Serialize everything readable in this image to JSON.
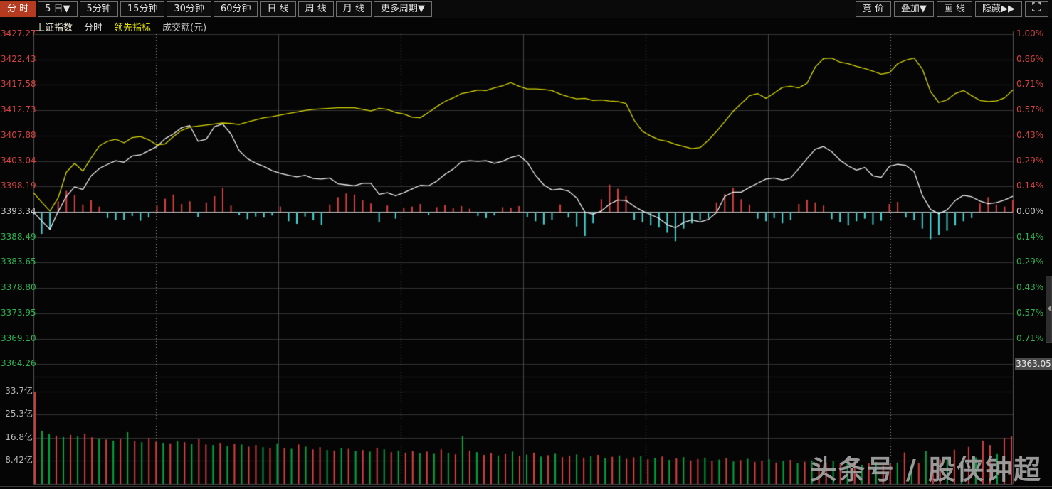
{
  "toolbar": {
    "tabs": [
      {
        "label": "分 时"
      },
      {
        "label": "5 日▼"
      },
      {
        "label": "5分钟"
      },
      {
        "label": "15分钟"
      },
      {
        "label": "30分钟"
      },
      {
        "label": "60分钟"
      },
      {
        "label": "日 线"
      },
      {
        "label": "周 线"
      },
      {
        "label": "月 线"
      },
      {
        "label": "更多周期▼"
      }
    ],
    "buttons": [
      {
        "label": "竞 价"
      },
      {
        "label": "叠加▼"
      },
      {
        "label": "画 线"
      },
      {
        "label": "隐藏▶▶"
      }
    ]
  },
  "legend": {
    "index_name": "上证指数",
    "chart_type": "分时",
    "indicator": "领先指标",
    "turnover": "成交额(元)"
  },
  "watermark": "头条号 / 股侠钟超",
  "chart_data": {
    "type": "line",
    "title": "上证指数 5日分时图 领先指标 成交额",
    "prev_close": 3393.34,
    "last_value_badge": "3363.05",
    "left_axis_prices": [
      "3427.27",
      "3422.43",
      "3417.58",
      "3412.73",
      "3407.88",
      "3403.04",
      "3398.19",
      "3393.34",
      "3388.49",
      "3383.65",
      "3378.80",
      "3373.95",
      "3369.10",
      "3364.26"
    ],
    "right_axis_percents": [
      "1.00%",
      "0.86%",
      "0.71%",
      "0.57%",
      "0.43%",
      "0.29%",
      "0.14%",
      "0.00%",
      "0.14%",
      "0.29%",
      "0.43%",
      "0.57%",
      "0.71%"
    ],
    "volume_axis_labels": [
      "33.7亿",
      "25.3亿",
      "16.8亿",
      "8.42亿"
    ],
    "volume_grid_values": [
      33.7,
      25.3,
      16.8,
      8.42
    ],
    "legend_position": "top-left",
    "grid": "on",
    "series": [
      {
        "name": "price_white_line",
        "color": "#f0f0f0",
        "values": [
          3393.3,
          3391.6,
          3390.0,
          3393.4,
          3396.3,
          3398.1,
          3397.6,
          3400.2,
          3401.6,
          3402.4,
          3403.1,
          3402.8,
          3404.0,
          3404.2,
          3405.0,
          3405.8,
          3407.3,
          3408.2,
          3409.4,
          3409.8,
          3406.8,
          3407.2,
          3409.6,
          3410.1,
          3408.2,
          3405.0,
          3403.5,
          3402.6,
          3402.0,
          3401.2,
          3400.7,
          3400.3,
          3400.0,
          3400.3,
          3399.7,
          3399.6,
          3399.8,
          3398.7,
          3398.5,
          3398.3,
          3398.8,
          3398.8,
          3396.7,
          3397.0,
          3396.4,
          3397.0,
          3397.7,
          3398.4,
          3398.3,
          3399.2,
          3400.5,
          3401.5,
          3402.9,
          3403.1,
          3403.0,
          3403.1,
          3402.6,
          3403.0,
          3403.7,
          3404.1,
          3402.8,
          3400.3,
          3398.5,
          3397.5,
          3397.7,
          3397.3,
          3396.0,
          3393.3,
          3392.9,
          3393.5,
          3394.8,
          3395.6,
          3395.5,
          3394.4,
          3393.5,
          3392.8,
          3392.1,
          3390.9,
          3390.3,
          3391.3,
          3391.8,
          3391.4,
          3391.9,
          3393.2,
          3396.3,
          3397.1,
          3397.1,
          3398.0,
          3398.8,
          3399.6,
          3399.8,
          3399.4,
          3399.8,
          3401.6,
          3403.5,
          3405.3,
          3405.8,
          3404.8,
          3403.2,
          3402.1,
          3401.3,
          3401.8,
          3400.2,
          3399.9,
          3402.0,
          3402.4,
          3402.2,
          3401.0,
          3396.5,
          3393.8,
          3393.0,
          3393.7,
          3395.5,
          3396.5,
          3396.2,
          3395.4,
          3394.9,
          3395.1,
          3395.6,
          3396.3
        ]
      },
      {
        "name": "leading_indicator_yellow_line",
        "color": "#d8d800",
        "values": [
          3397.0,
          3395.2,
          3393.5,
          3396.0,
          3400.9,
          3402.6,
          3401.1,
          3403.6,
          3405.9,
          3406.8,
          3407.2,
          3406.5,
          3407.5,
          3407.7,
          3407.1,
          3406.1,
          3406.3,
          3407.7,
          3408.9,
          3409.5,
          3409.7,
          3409.9,
          3410.1,
          3410.3,
          3410.2,
          3410.0,
          3410.5,
          3410.9,
          3411.3,
          3411.5,
          3411.8,
          3412.1,
          3412.4,
          3412.7,
          3412.9,
          3413.0,
          3413.1,
          3413.2,
          3413.2,
          3413.2,
          3412.9,
          3412.6,
          3413.1,
          3412.9,
          3412.3,
          3412.0,
          3411.4,
          3411.3,
          3412.3,
          3413.4,
          3414.4,
          3415.1,
          3415.9,
          3416.2,
          3416.6,
          3416.5,
          3417.0,
          3417.4,
          3418.0,
          3417.3,
          3416.8,
          3416.8,
          3416.7,
          3416.5,
          3415.8,
          3415.3,
          3414.9,
          3415.0,
          3414.6,
          3414.7,
          3414.5,
          3414.4,
          3414.0,
          3410.8,
          3408.7,
          3407.8,
          3407.1,
          3406.8,
          3406.2,
          3405.8,
          3405.4,
          3405.6,
          3407.0,
          3408.7,
          3410.6,
          3412.5,
          3414.0,
          3415.5,
          3415.9,
          3415.0,
          3416.0,
          3417.1,
          3417.3,
          3417.0,
          3417.9,
          3421.0,
          3422.6,
          3422.7,
          3421.9,
          3421.6,
          3421.1,
          3420.7,
          3420.2,
          3419.6,
          3419.9,
          3421.6,
          3422.3,
          3422.7,
          3420.6,
          3416.3,
          3414.2,
          3414.7,
          3415.9,
          3416.5,
          3415.5,
          3414.6,
          3414.4,
          3414.5,
          3415.1,
          3416.6
        ]
      }
    ],
    "histogram": {
      "name": "momentum_bars",
      "up_color": "#d94040",
      "down_color": "#45d8d8",
      "values": [
        -0.5,
        -4.2,
        -3.4,
        2.0,
        4.0,
        3.2,
        1.4,
        2.2,
        1.0,
        -1.2,
        -1.6,
        -1.5,
        -0.8,
        -1.7,
        -1.1,
        1.2,
        2.5,
        3.3,
        1.5,
        2.0,
        -1.0,
        1.8,
        3.0,
        4.6,
        1.2,
        -0.6,
        -1.4,
        -0.9,
        -1.1,
        -0.7,
        1.0,
        -1.8,
        -2.3,
        -0.9,
        -1.6,
        -2.5,
        1.4,
        2.8,
        3.5,
        3.3,
        2.2,
        1.6,
        -2.0,
        1.2,
        -1.3,
        0.8,
        1.0,
        1.5,
        -0.6,
        0.9,
        1.3,
        0.7,
        1.1,
        0.6,
        -0.8,
        -1.2,
        -0.7,
        0.9,
        0.8,
        1.1,
        -1.0,
        -1.8,
        -2.4,
        -1.5,
        1.4,
        -1.1,
        -2.8,
        -4.6,
        -2.2,
        2.4,
        5.2,
        4.4,
        3.0,
        -1.5,
        -2.0,
        -2.6,
        -3.0,
        -4.0,
        -5.6,
        -3.2,
        -2.2,
        -1.6,
        -1.2,
        1.8,
        3.4,
        4.6,
        2.4,
        1.4,
        -1.3,
        -1.8,
        -1.2,
        -2.2,
        -1.6,
        1.5,
        2.3,
        1.8,
        1.2,
        -1.4,
        -2.0,
        -2.6,
        -1.8,
        -1.3,
        -2.4,
        -1.7,
        1.5,
        1.9,
        -1.1,
        -1.6,
        -3.2,
        -5.2,
        -4.4,
        -3.6,
        -2.6,
        -1.8,
        -1.2,
        1.6,
        2.8,
        1.4,
        1.0,
        2.2
      ]
    },
    "volume": {
      "name": "turnover_yi_yuan",
      "up_color": "#d94040",
      "down_color": "#00a843",
      "values": [
        33.6,
        -19.4,
        -18.3,
        17.6,
        -17.1,
        17.9,
        -17.3,
        18.4,
        17.0,
        -16.6,
        16.2,
        -15.8,
        16.4,
        -18.9,
        15.6,
        -15.2,
        16.8,
        15.4,
        -15.0,
        14.8,
        -15.6,
        15.2,
        -14.6,
        16.5,
        14.4,
        -14.2,
        15.0,
        -13.8,
        14.6,
        -14.4,
        13.6,
        14.2,
        -13.4,
        13.2,
        -14.8,
        13.0,
        -12.8,
        14.4,
        -13.6,
        12.6,
        13.4,
        -12.4,
        12.2,
        -13.0,
        12.8,
        -12.0,
        12.4,
        -11.8,
        13.2,
        -12.6,
        11.6,
        -12.2,
        11.4,
        12.0,
        -11.2,
        11.8,
        -11.0,
        12.6,
        -11.4,
        10.8,
        -17.5,
        12.2,
        -11.6,
        10.6,
        11.2,
        -10.4,
        10.9,
        -11.8,
        10.2,
        -10.7,
        11.4,
        -10.0,
        10.5,
        -11.0,
        9.8,
        10.3,
        -10.8,
        9.6,
        -10.1,
        10.6,
        -9.4,
        9.9,
        -10.4,
        9.2,
        9.7,
        -10.2,
        9.0,
        -9.5,
        10.0,
        -8.8,
        9.3,
        -9.8,
        8.6,
        9.1,
        -9.6,
        8.4,
        -8.9,
        9.4,
        -8.2,
        8.7,
        -9.2,
        8.0,
        8.5,
        -9.0,
        7.8,
        -8.3,
        8.8,
        -7.6,
        8.1,
        -8.6,
        7.4,
        7.9,
        -8.4,
        7.2,
        -7.7,
        8.2,
        -7.0,
        7.5,
        -8.0,
        6.8,
        7.3,
        -7.8,
        11.5,
        -7.1,
        7.6,
        -12.0,
        6.9,
        8.9,
        -9.3,
        12.5,
        -8.5,
        13.5,
        -9.7,
        15.8,
        14.2,
        -10.9,
        16.8,
        17.4
      ]
    },
    "colors": {
      "active_tab_bg": "#b43a20",
      "axis_up": "#d24242",
      "axis_down": "#2db150",
      "axis_neutral": "#c8c8c8",
      "indicator_label": "#e3e300"
    }
  }
}
